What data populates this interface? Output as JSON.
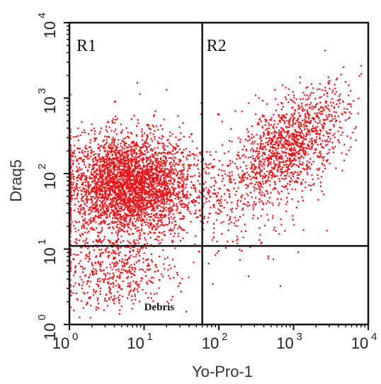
{
  "chart_data": {
    "type": "scatter",
    "title": "",
    "xlabel": "Yo-Pro-1",
    "ylabel": "Draq5",
    "x_scale": "log",
    "y_scale": "log",
    "xlim": [
      1,
      10000
    ],
    "ylim": [
      1,
      10000
    ],
    "x_ticks": [
      {
        "base": "10",
        "exp": "0"
      },
      {
        "base": "10",
        "exp": "1"
      },
      {
        "base": "10",
        "exp": "2"
      },
      {
        "base": "10",
        "exp": "3"
      },
      {
        "base": "10",
        "exp": "4"
      }
    ],
    "y_ticks": [
      {
        "base": "10",
        "exp": "0"
      },
      {
        "base": "10",
        "exp": "1"
      },
      {
        "base": "10",
        "exp": "2"
      },
      {
        "base": "10",
        "exp": "3"
      },
      {
        "base": "10",
        "exp": "4"
      }
    ],
    "gates": {
      "vertical_x": 60,
      "horizontal_y": 11
    },
    "regions": [
      {
        "label": "R1"
      },
      {
        "label": "R2"
      },
      {
        "label": "Debris"
      }
    ],
    "point_color": "#e8141a",
    "populations": [
      {
        "x_center": 6,
        "y_center": 70,
        "x_spread_log": 0.42,
        "y_spread_log": 0.34,
        "count": 3600
      },
      {
        "x_center": 900,
        "y_center": 250,
        "x_spread_log": 0.38,
        "y_spread_log": 0.3,
        "count": 1300
      },
      {
        "x_center": 4,
        "y_center": 5,
        "x_spread_log": 0.4,
        "y_spread_log": 0.25,
        "count": 500
      },
      {
        "x_center": 120,
        "y_center": 60,
        "x_spread_log": 0.5,
        "y_spread_log": 0.45,
        "count": 350
      }
    ],
    "grid": false,
    "legend": "none"
  }
}
